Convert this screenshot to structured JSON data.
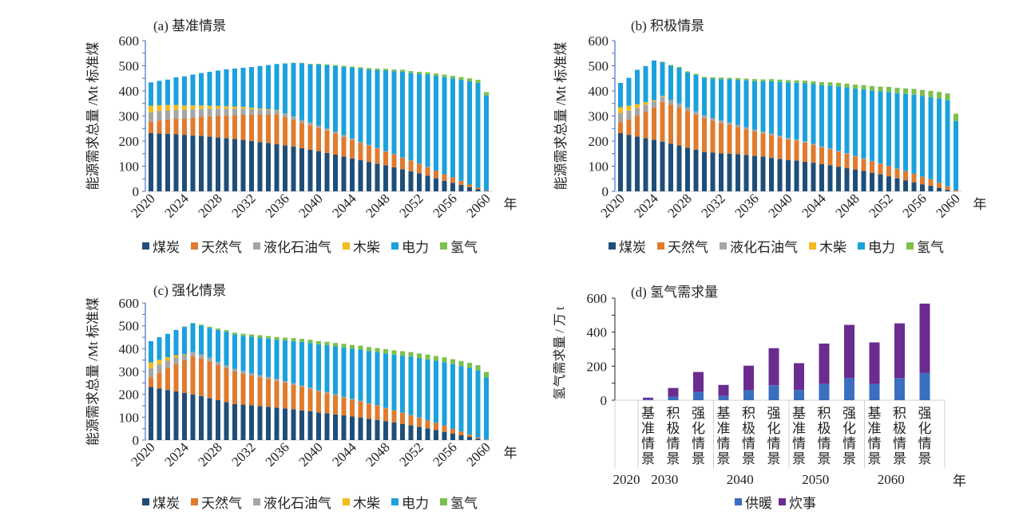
{
  "chart_data": [
    {
      "type": "bar",
      "stacked": true,
      "title": "(a) 基准情景",
      "xlabel": "年",
      "ylabel": "能源需求总量 /Mt 标准煤",
      "ylim": [
        0,
        600
      ],
      "yticks": [
        0,
        100,
        200,
        300,
        400,
        500,
        600
      ],
      "xtick_labels": [
        "2020",
        "2024",
        "2028",
        "2032",
        "2036",
        "2040",
        "2044",
        "2048",
        "2052",
        "2056",
        "2060"
      ],
      "x": [
        2020,
        2021,
        2022,
        2023,
        2024,
        2025,
        2026,
        2027,
        2028,
        2029,
        2030,
        2031,
        2032,
        2033,
        2034,
        2035,
        2036,
        2037,
        2038,
        2039,
        2040,
        2041,
        2042,
        2043,
        2044,
        2045,
        2046,
        2047,
        2048,
        2049,
        2050,
        2051,
        2052,
        2053,
        2054,
        2055,
        2056,
        2057,
        2058,
        2059,
        2060
      ],
      "series": [
        {
          "name": "煤炭",
          "values": [
            232,
            230,
            229,
            227,
            225,
            222,
            221,
            218,
            214,
            212,
            208,
            205,
            200,
            196,
            192,
            188,
            183,
            178,
            172,
            166,
            160,
            153,
            146,
            139,
            131,
            124,
            117,
            110,
            104,
            96,
            88,
            80,
            72,
            62,
            52,
            42,
            34,
            26,
            17,
            8,
            2
          ]
        },
        {
          "name": "天然气",
          "values": [
            45,
            52,
            57,
            63,
            66,
            72,
            76,
            81,
            86,
            90,
            95,
            100,
            105,
            110,
            114,
            118,
            112,
            106,
            100,
            97,
            92,
            89,
            84,
            78,
            74,
            68,
            64,
            60,
            54,
            50,
            46,
            42,
            38,
            34,
            30,
            26,
            22,
            16,
            10,
            6,
            2
          ]
        },
        {
          "name": "液化石油气",
          "values": [
            38,
            37,
            36,
            34,
            33,
            32,
            31,
            30,
            29,
            27,
            26,
            24,
            22,
            20,
            18,
            16,
            14,
            13,
            12,
            11,
            10,
            9,
            8,
            7,
            6,
            5,
            4,
            3,
            2,
            2,
            1,
            1,
            1,
            1,
            0,
            0,
            0,
            0,
            0,
            0,
            0
          ]
        },
        {
          "name": "木柴",
          "values": [
            26,
            24,
            22,
            20,
            18,
            16,
            14,
            12,
            11,
            10,
            9,
            8,
            6,
            4,
            3,
            2,
            1,
            1,
            0,
            0,
            0,
            0,
            0,
            0,
            0,
            0,
            0,
            0,
            0,
            0,
            0,
            0,
            0,
            0,
            0,
            0,
            0,
            0,
            0,
            0,
            0
          ]
        },
        {
          "name": "电力",
          "values": [
            93,
            97,
            101,
            110,
            116,
            123,
            129,
            135,
            141,
            147,
            151,
            155,
            162,
            169,
            176,
            183,
            199,
            213,
            226,
            231,
            243,
            251,
            261,
            271,
            281,
            292,
            300,
            310,
            321,
            330,
            341,
            348,
            357,
            368,
            378,
            387,
            394,
            402,
            411,
            418,
            378
          ]
        },
        {
          "name": "氢气",
          "values": [
            0,
            0,
            0,
            0,
            0,
            0,
            0,
            0,
            0,
            0,
            0,
            0,
            0,
            0,
            0,
            0,
            1,
            1,
            2,
            3,
            3,
            4,
            4,
            5,
            5,
            5,
            6,
            6,
            7,
            7,
            8,
            8,
            8,
            9,
            9,
            10,
            10,
            11,
            12,
            12,
            13
          ]
        }
      ]
    },
    {
      "type": "bar",
      "stacked": true,
      "title": "(b) 积极情景",
      "xlabel": "年",
      "ylabel": "能源需求总量 /Mt 标准煤",
      "ylim": [
        0,
        600
      ],
      "yticks": [
        0,
        100,
        200,
        300,
        400,
        500,
        600
      ],
      "xtick_labels": [
        "2020",
        "2024",
        "2028",
        "2032",
        "2036",
        "2040",
        "2044",
        "2048",
        "2052",
        "2056",
        "2060"
      ],
      "x": [
        2020,
        2021,
        2022,
        2023,
        2024,
        2025,
        2026,
        2027,
        2028,
        2029,
        2030,
        2031,
        2032,
        2033,
        2034,
        2035,
        2036,
        2037,
        2038,
        2039,
        2040,
        2041,
        2042,
        2043,
        2044,
        2045,
        2046,
        2047,
        2048,
        2049,
        2050,
        2051,
        2052,
        2053,
        2054,
        2055,
        2056,
        2057,
        2058,
        2059,
        2060
      ],
      "series": [
        {
          "name": "煤炭",
          "values": [
            232,
            225,
            218,
            212,
            205,
            198,
            190,
            183,
            174,
            165,
            156,
            154,
            151,
            150,
            148,
            145,
            141,
            138,
            133,
            129,
            125,
            123,
            118,
            114,
            108,
            104,
            98,
            93,
            87,
            81,
            74,
            68,
            60,
            52,
            44,
            36,
            28,
            22,
            14,
            6,
            1
          ]
        },
        {
          "name": "天然气",
          "values": [
            43,
            62,
            83,
            105,
            129,
            158,
            155,
            150,
            145,
            140,
            135,
            127,
            121,
            115,
            108,
            102,
            97,
            93,
            90,
            86,
            82,
            79,
            76,
            71,
            67,
            64,
            60,
            56,
            52,
            48,
            45,
            42,
            40,
            38,
            36,
            34,
            30,
            26,
            20,
            14,
            4
          ]
        },
        {
          "name": "液化石油气",
          "values": [
            36,
            34,
            31,
            28,
            24,
            21,
            19,
            17,
            15,
            13,
            12,
            11,
            10,
            9,
            9,
            8,
            8,
            7,
            7,
            6,
            6,
            5,
            5,
            4,
            4,
            3,
            3,
            3,
            2,
            2,
            2,
            1,
            1,
            1,
            1,
            0,
            0,
            0,
            0,
            0,
            0
          ]
        },
        {
          "name": "木柴",
          "values": [
            24,
            20,
            15,
            10,
            5,
            3,
            0,
            0,
            0,
            0,
            0,
            0,
            0,
            0,
            0,
            0,
            0,
            0,
            0,
            0,
            0,
            0,
            0,
            0,
            0,
            0,
            0,
            0,
            0,
            0,
            0,
            0,
            0,
            0,
            0,
            0,
            0,
            0,
            0,
            0,
            0
          ]
        },
        {
          "name": "电力",
          "values": [
            97,
            111,
            137,
            144,
            158,
            134,
            136,
            142,
            140,
            146,
            148,
            157,
            165,
            172,
            179,
            187,
            193,
            200,
            208,
            215,
            220,
            225,
            231,
            238,
            244,
            250,
            257,
            262,
            268,
            275,
            280,
            287,
            295,
            300,
            307,
            315,
            322,
            327,
            336,
            343,
            275
          ]
        },
        {
          "name": "氢气",
          "values": [
            0,
            0,
            0,
            0,
            0,
            2,
            3,
            3,
            4,
            4,
            5,
            5,
            6,
            6,
            7,
            7,
            8,
            8,
            9,
            9,
            10,
            10,
            11,
            11,
            12,
            13,
            14,
            15,
            16,
            17,
            18,
            19,
            20,
            21,
            22,
            23,
            24,
            25,
            26,
            27,
            29
          ]
        }
      ]
    },
    {
      "type": "bar",
      "stacked": true,
      "title": "(c) 强化情景",
      "xlabel": "年",
      "ylabel": "能源需求总量 /Mt 标准煤",
      "ylim": [
        0,
        600
      ],
      "yticks": [
        0,
        100,
        200,
        300,
        400,
        500,
        600
      ],
      "xtick_labels": [
        "2020",
        "2024",
        "2028",
        "2032",
        "2036",
        "2040",
        "2044",
        "2048",
        "2052",
        "2056",
        "2060"
      ],
      "x": [
        2020,
        2021,
        2022,
        2023,
        2024,
        2025,
        2026,
        2027,
        2028,
        2029,
        2030,
        2031,
        2032,
        2033,
        2034,
        2035,
        2036,
        2037,
        2038,
        2039,
        2040,
        2041,
        2042,
        2043,
        2044,
        2045,
        2046,
        2047,
        2048,
        2049,
        2050,
        2051,
        2052,
        2053,
        2054,
        2055,
        2056,
        2057,
        2058,
        2059,
        2060
      ],
      "series": [
        {
          "name": "煤炭",
          "values": [
            232,
            226,
            219,
            213,
            206,
            199,
            192,
            184,
            175,
            166,
            157,
            155,
            152,
            148,
            145,
            142,
            138,
            135,
            130,
            126,
            121,
            117,
            112,
            108,
            103,
            99,
            93,
            88,
            83,
            77,
            71,
            65,
            58,
            51,
            44,
            36,
            29,
            21,
            14,
            6,
            1
          ]
        },
        {
          "name": "天然气",
          "values": [
            43,
            68,
            95,
            120,
            143,
            167,
            164,
            160,
            153,
            148,
            143,
            136,
            131,
            127,
            123,
            117,
            113,
            107,
            103,
            97,
            92,
            88,
            84,
            78,
            74,
            70,
            66,
            62,
            56,
            52,
            48,
            44,
            40,
            36,
            32,
            28,
            20,
            16,
            10,
            5,
            2
          ]
        },
        {
          "name": "液化石油气",
          "values": [
            40,
            37,
            33,
            28,
            22,
            20,
            18,
            16,
            14,
            13,
            12,
            11,
            10,
            9,
            8,
            8,
            7,
            7,
            6,
            6,
            5,
            5,
            4,
            4,
            3,
            3,
            2,
            2,
            2,
            1,
            1,
            1,
            1,
            0,
            0,
            0,
            0,
            0,
            0,
            0,
            0
          ]
        },
        {
          "name": "木柴",
          "values": [
            25,
            20,
            15,
            10,
            4,
            0,
            0,
            0,
            0,
            0,
            0,
            0,
            0,
            0,
            0,
            0,
            0,
            0,
            0,
            0,
            0,
            0,
            0,
            0,
            0,
            0,
            0,
            0,
            0,
            0,
            0,
            0,
            0,
            0,
            0,
            0,
            0,
            0,
            0,
            0,
            0
          ]
        },
        {
          "name": "电力",
          "values": [
            93,
            99,
            103,
            111,
            120,
            124,
            127,
            131,
            140,
            147,
            150,
            154,
            159,
            164,
            168,
            172,
            178,
            184,
            191,
            196,
            201,
            205,
            210,
            215,
            220,
            224,
            228,
            233,
            238,
            244,
            249,
            255,
            260,
            266,
            271,
            277,
            283,
            287,
            292,
            294,
            272
          ]
        },
        {
          "name": "氢气",
          "values": [
            0,
            0,
            0,
            0,
            2,
            3,
            4,
            5,
            6,
            7,
            8,
            9,
            10,
            11,
            11,
            12,
            12,
            13,
            13,
            14,
            14,
            15,
            15,
            16,
            16,
            17,
            18,
            18,
            19,
            19,
            20,
            20,
            20,
            21,
            21,
            21,
            22,
            22,
            22,
            23,
            23
          ]
        }
      ]
    },
    {
      "type": "bar",
      "stacked": true,
      "title": "(d) 氢气需求量",
      "xlabel": "年",
      "ylabel": "氢气需求量 / 万 t",
      "ylim": [
        0,
        600
      ],
      "yticks": [
        0,
        200,
        400,
        600
      ],
      "groups": [
        "2020",
        "2030",
        "2040",
        "2050",
        "2060"
      ],
      "categories": [
        "基准情景",
        "积极情景",
        "强化情景"
      ],
      "bars": [
        {
          "group": "2030",
          "category": "基准情景"
        },
        {
          "group": "2030",
          "category": "积极情景"
        },
        {
          "group": "2030",
          "category": "强化情景"
        },
        {
          "group": "2040",
          "category": "基准情景"
        },
        {
          "group": "2040",
          "category": "积极情景"
        },
        {
          "group": "2040",
          "category": "强化情景"
        },
        {
          "group": "2050",
          "category": "基准情景"
        },
        {
          "group": "2050",
          "category": "积极情景"
        },
        {
          "group": "2050",
          "category": "强化情景"
        },
        {
          "group": "2060",
          "category": "基准情景"
        },
        {
          "group": "2060",
          "category": "积极情景"
        },
        {
          "group": "2060",
          "category": "强化情景"
        }
      ],
      "series": [
        {
          "name": "供暖",
          "values": [
            5,
            20,
            48,
            25,
            58,
            88,
            60,
            95,
            130,
            95,
            130,
            160
          ]
        },
        {
          "name": "炊事",
          "values": [
            10,
            52,
            118,
            65,
            145,
            218,
            158,
            238,
            313,
            245,
            322,
            408
          ]
        }
      ]
    }
  ],
  "legend_energy": [
    "煤炭",
    "天然气",
    "液化石油气",
    "木柴",
    "电力",
    "氢气"
  ],
  "legend_hydrogen": [
    "供暖",
    "炊事"
  ],
  "colors": {
    "煤炭": "#1f4e79",
    "天然气": "#e07b2e",
    "液化石油气": "#a5a5a5",
    "木柴": "#f2bb1f",
    "电力": "#1ba1dc",
    "氢气": "#7cc04b",
    "供暖": "#3a6fc0",
    "炊事": "#6a2c8f",
    "axis": "#4472c4"
  }
}
